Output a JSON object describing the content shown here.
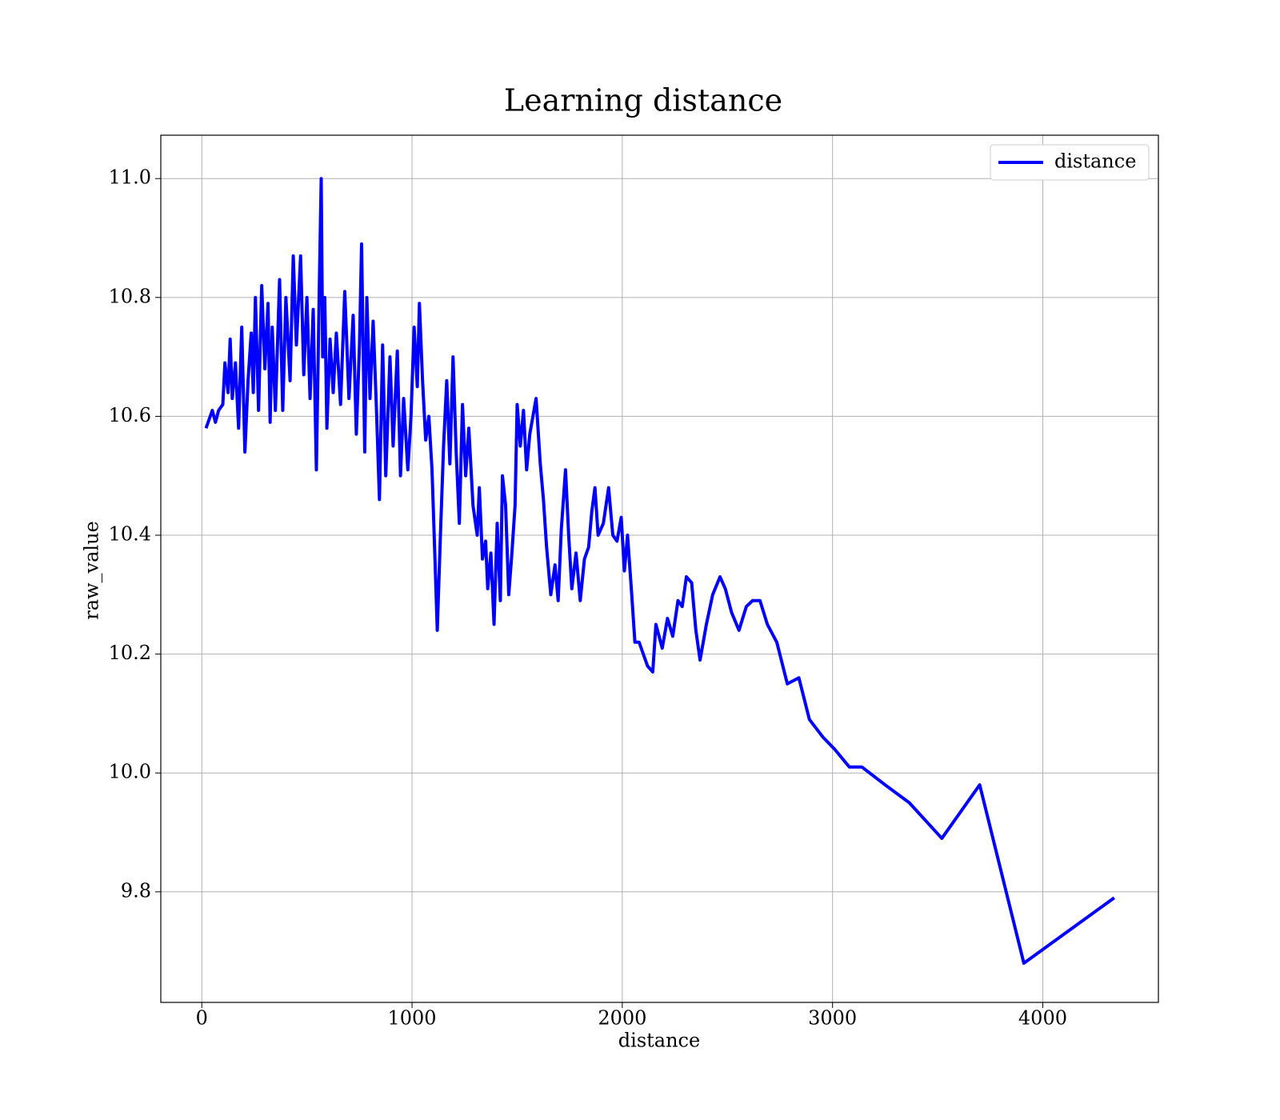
{
  "chart_data": {
    "type": "line",
    "title": "Learning distance",
    "x_label": "distance",
    "y_label": "raw_value",
    "legend": "upper right",
    "grid": true,
    "xlim": [
      -195,
      4550
    ],
    "xticks": [
      0,
      1000,
      2000,
      3000,
      4000
    ],
    "ylim": [
      9.614,
      11.073
    ],
    "yticks": [
      {
        "value": 9.8,
        "label": "9.8"
      },
      {
        "value": 10.0,
        "label": "10.0"
      },
      {
        "value": 10.2,
        "label": "10.2"
      },
      {
        "value": 10.4,
        "label": "10.4"
      },
      {
        "value": 10.6,
        "label": "10.6"
      },
      {
        "value": 10.8,
        "label": "10.8"
      },
      {
        "value": 11.0,
        "label": "11.0"
      }
    ],
    "x": [
      20,
      50,
      65,
      80,
      100,
      110,
      125,
      135,
      145,
      160,
      175,
      190,
      205,
      220,
      235,
      245,
      255,
      270,
      285,
      300,
      315,
      325,
      335,
      350,
      370,
      385,
      400,
      420,
      435,
      450,
      470,
      485,
      500,
      515,
      530,
      545,
      560,
      568,
      575,
      585,
      595,
      610,
      625,
      640,
      660,
      680,
      700,
      720,
      735,
      750,
      760,
      775,
      785,
      800,
      815,
      830,
      845,
      860,
      875,
      895,
      910,
      930,
      945,
      960,
      980,
      995,
      1010,
      1025,
      1035,
      1050,
      1065,
      1080,
      1095,
      1110,
      1120,
      1135,
      1150,
      1165,
      1180,
      1195,
      1210,
      1225,
      1240,
      1255,
      1270,
      1290,
      1310,
      1320,
      1335,
      1350,
      1360,
      1375,
      1390,
      1405,
      1420,
      1430,
      1445,
      1460,
      1475,
      1490,
      1500,
      1515,
      1530,
      1545,
      1560,
      1575,
      1590,
      1610,
      1625,
      1640,
      1660,
      1680,
      1695,
      1710,
      1730,
      1745,
      1760,
      1780,
      1800,
      1820,
      1840,
      1855,
      1870,
      1885,
      1910,
      1935,
      1955,
      1975,
      1995,
      2010,
      2025,
      2045,
      2060,
      2080,
      2100,
      2120,
      2145,
      2160,
      2190,
      2215,
      2240,
      2265,
      2285,
      2305,
      2330,
      2350,
      2370,
      2400,
      2430,
      2465,
      2490,
      2520,
      2555,
      2590,
      2620,
      2655,
      2690,
      2735,
      2785,
      2840,
      2890,
      2955,
      3010,
      3080,
      3140,
      3250,
      3365,
      3520,
      3700,
      3910,
      4340
    ],
    "series": [
      {
        "name": "distance",
        "color": "#0000ff",
        "values": [
          10.58,
          10.61,
          10.59,
          10.61,
          10.62,
          10.69,
          10.64,
          10.73,
          10.63,
          10.69,
          10.58,
          10.75,
          10.54,
          10.66,
          10.74,
          10.64,
          10.8,
          10.61,
          10.82,
          10.68,
          10.79,
          10.59,
          10.75,
          10.61,
          10.83,
          10.61,
          10.8,
          10.66,
          10.87,
          10.72,
          10.87,
          10.67,
          10.8,
          10.63,
          10.78,
          10.51,
          10.84,
          11.0,
          10.7,
          10.8,
          10.58,
          10.73,
          10.64,
          10.74,
          10.62,
          10.81,
          10.63,
          10.77,
          10.57,
          10.72,
          10.89,
          10.54,
          10.8,
          10.63,
          10.76,
          10.62,
          10.46,
          10.72,
          10.5,
          10.7,
          10.55,
          10.71,
          10.5,
          10.63,
          10.51,
          10.6,
          10.75,
          10.65,
          10.79,
          10.66,
          10.56,
          10.6,
          10.51,
          10.35,
          10.24,
          10.4,
          10.55,
          10.66,
          10.52,
          10.7,
          10.54,
          10.42,
          10.62,
          10.5,
          10.58,
          10.45,
          10.4,
          10.48,
          10.36,
          10.39,
          10.31,
          10.37,
          10.25,
          10.42,
          10.29,
          10.5,
          10.45,
          10.3,
          10.37,
          10.45,
          10.62,
          10.55,
          10.61,
          10.51,
          10.57,
          10.6,
          10.63,
          10.52,
          10.46,
          10.38,
          10.3,
          10.35,
          10.29,
          10.41,
          10.51,
          10.4,
          10.31,
          10.37,
          10.29,
          10.36,
          10.38,
          10.44,
          10.48,
          10.4,
          10.42,
          10.48,
          10.4,
          10.39,
          10.43,
          10.34,
          10.4,
          10.3,
          10.22,
          10.22,
          10.2,
          10.18,
          10.17,
          10.25,
          10.21,
          10.26,
          10.23,
          10.29,
          10.28,
          10.33,
          10.32,
          10.24,
          10.19,
          10.25,
          10.3,
          10.33,
          10.31,
          10.27,
          10.24,
          10.28,
          10.29,
          10.29,
          10.25,
          10.22,
          10.15,
          10.16,
          10.09,
          10.06,
          10.04,
          10.01,
          10.01,
          9.98,
          9.95,
          9.89,
          9.98,
          9.68,
          9.79
        ]
      }
    ]
  }
}
